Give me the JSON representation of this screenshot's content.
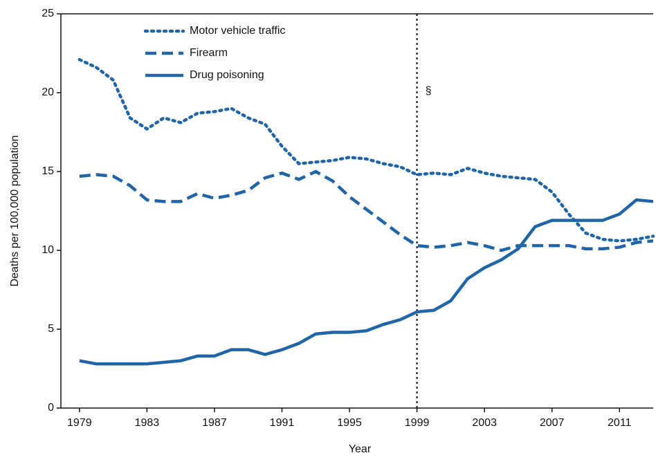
{
  "chart_data": {
    "type": "line",
    "x": [
      1979,
      1980,
      1981,
      1982,
      1983,
      1984,
      1985,
      1986,
      1987,
      1988,
      1989,
      1990,
      1991,
      1992,
      1993,
      1994,
      1995,
      1996,
      1997,
      1998,
      1999,
      2000,
      2001,
      2002,
      2003,
      2004,
      2005,
      2006,
      2007,
      2008,
      2009,
      2010,
      2011,
      2012,
      2013
    ],
    "series": [
      {
        "name": "Motor vehicle traffic",
        "color": "#1f65a8",
        "dash": "dotted",
        "values": [
          22.1,
          21.6,
          20.8,
          18.4,
          17.7,
          18.4,
          18.1,
          18.7,
          18.8,
          19.0,
          18.4,
          18.0,
          16.6,
          15.5,
          15.6,
          15.7,
          15.9,
          15.8,
          15.5,
          15.3,
          14.8,
          14.9,
          14.8,
          15.2,
          14.9,
          14.7,
          14.6,
          14.5,
          13.7,
          12.3,
          11.1,
          10.7,
          10.6,
          10.7,
          10.9
        ]
      },
      {
        "name": "Firearm",
        "color": "#1f65a8",
        "dash": "dashed",
        "values": [
          14.7,
          14.8,
          14.7,
          14.1,
          13.2,
          13.1,
          13.1,
          13.6,
          13.3,
          13.5,
          13.8,
          14.6,
          14.9,
          14.5,
          15.0,
          14.4,
          13.4,
          12.6,
          11.8,
          11.0,
          10.3,
          10.2,
          10.3,
          10.5,
          10.3,
          10.0,
          10.3,
          10.3,
          10.3,
          10.3,
          10.1,
          10.1,
          10.2,
          10.5,
          10.6
        ]
      },
      {
        "name": "Drug poisoning",
        "color": "#1f65a8",
        "dash": "solid",
        "values": [
          3.0,
          2.8,
          2.8,
          2.8,
          2.8,
          2.9,
          3.0,
          3.3,
          3.3,
          3.7,
          3.7,
          3.4,
          3.7,
          4.1,
          4.7,
          4.8,
          4.8,
          4.9,
          5.3,
          5.6,
          6.1,
          6.2,
          6.8,
          8.2,
          8.9,
          9.4,
          10.1,
          11.5,
          11.9,
          11.9,
          11.9,
          11.9,
          12.3,
          13.2,
          13.1
        ]
      }
    ],
    "xlabel": "Year",
    "ylabel": "Deaths per 100,000 population",
    "xlim": [
      1977.9,
      2013
    ],
    "ylim": [
      0,
      25
    ],
    "xticks": [
      1979,
      1983,
      1987,
      1991,
      1995,
      1999,
      2003,
      2007,
      2011
    ],
    "yticks": [
      0,
      5,
      10,
      15,
      20,
      25
    ],
    "reference_line": {
      "x": 1999,
      "label": "§"
    }
  }
}
